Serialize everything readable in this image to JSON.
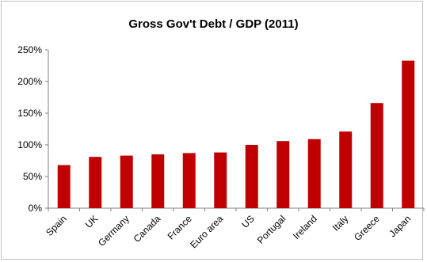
{
  "chart_data": {
    "type": "bar",
    "title": "Gross Gov't Debt / GDP (2011)",
    "categories": [
      "Spain",
      "UK",
      "Germany",
      "Canada",
      "France",
      "Euro area",
      "US",
      "Portugal",
      "Ireland",
      "Italy",
      "Greece",
      "Japan"
    ],
    "values": [
      68,
      81,
      83,
      85,
      87,
      88,
      100,
      106,
      109,
      121,
      166,
      233
    ],
    "ylim": [
      0,
      250
    ],
    "yticks": [
      "0%",
      "50%",
      "100%",
      "150%",
      "200%",
      "250%"
    ],
    "ytick_values": [
      0,
      50,
      100,
      150,
      200,
      250
    ],
    "grid": false,
    "legend": "none",
    "bar_color": "#c00000"
  }
}
